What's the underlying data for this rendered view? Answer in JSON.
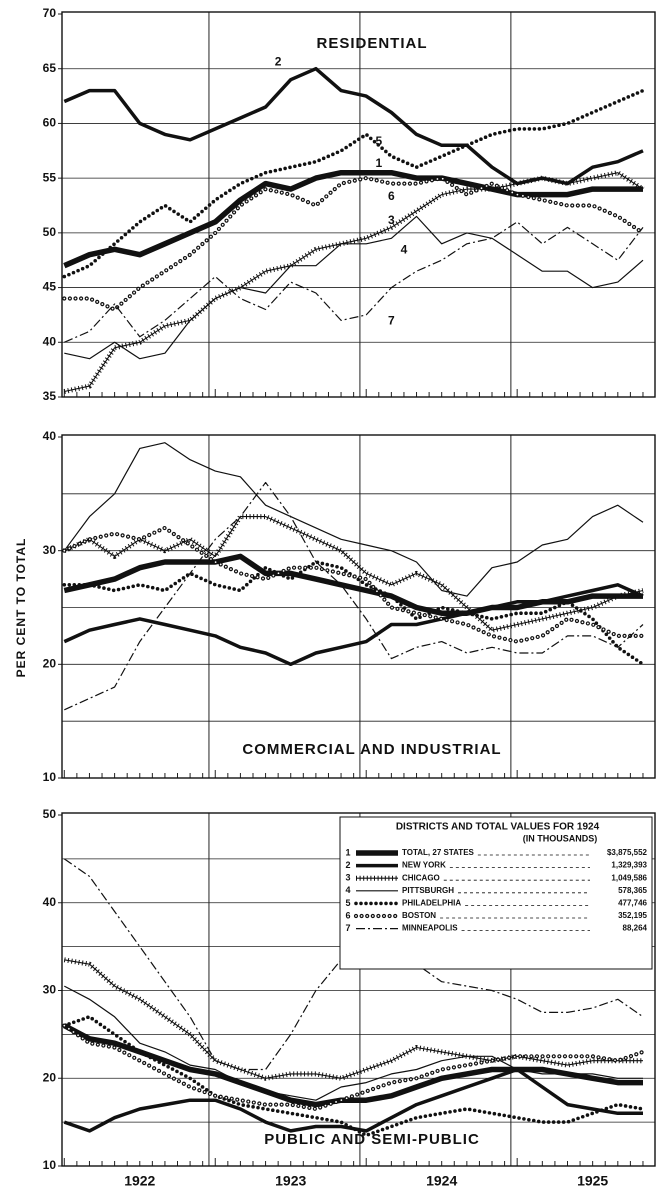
{
  "chart_data": [
    {
      "type": "line",
      "title": "RESIDENTIAL",
      "ylim": [
        35,
        70
      ],
      "yticks": [
        35,
        40,
        45,
        50,
        55,
        60,
        65,
        70
      ],
      "ygrid": [
        40,
        45,
        50,
        55,
        60,
        65
      ],
      "series": [
        {
          "values": [
            47,
            48,
            48.5,
            48,
            49,
            50,
            51,
            53,
            54.5,
            54,
            55,
            55.5,
            55.5,
            55.5,
            55,
            55,
            54.5,
            54,
            53.5,
            53.5,
            53.5,
            54,
            54,
            54
          ]
        },
        {
          "values": [
            62,
            63,
            63,
            60,
            59,
            58.5,
            59.5,
            60.5,
            61.5,
            64,
            65,
            63,
            62.5,
            61,
            59,
            58,
            58,
            56,
            54.5,
            55,
            54.5,
            56,
            56.5,
            57.5
          ]
        },
        {
          "values": [
            35.5,
            36,
            39.5,
            40,
            41.5,
            42,
            44,
            45,
            46.5,
            47,
            48.5,
            49,
            49.5,
            50.5,
            52,
            53.5,
            54,
            54,
            54.5,
            55,
            54.5,
            55,
            55.5,
            54
          ]
        },
        {
          "values": [
            39,
            38.5,
            40,
            38.5,
            39,
            42,
            44,
            45,
            44.5,
            47,
            47,
            49,
            49,
            49.5,
            51.5,
            49,
            50,
            49.5,
            48,
            46.5,
            46.5,
            45,
            45.5,
            47.5
          ]
        },
        {
          "values": [
            46,
            47,
            49,
            51,
            52.5,
            51,
            53,
            54.5,
            55.5,
            56,
            56.5,
            57.5,
            59,
            57,
            56,
            57,
            58,
            59,
            59.5,
            59.5,
            60,
            61,
            62,
            63
          ]
        },
        {
          "values": [
            44,
            44,
            43,
            45,
            46.5,
            48,
            50,
            52.5,
            54,
            53.5,
            52.5,
            54.5,
            55,
            54.5,
            54.5,
            55,
            53.5,
            54.5,
            53.5,
            53,
            52.5,
            52.5,
            51.5,
            50
          ]
        },
        {
          "values": [
            40,
            41,
            43.5,
            40.5,
            42,
            44,
            46,
            44,
            43,
            45.5,
            44.5,
            42,
            42.5,
            45,
            46.5,
            47.5,
            49,
            49.5,
            51,
            49,
            50.5,
            49,
            47.5,
            50.5
          ]
        }
      ],
      "annotations": [
        {
          "text": "1",
          "x": 12.5,
          "y": 56.3
        },
        {
          "text": "2",
          "x": 8.5,
          "y": 65.6
        },
        {
          "text": "3",
          "x": 13,
          "y": 51.1
        },
        {
          "text": "4",
          "x": 13.5,
          "y": 48.4
        },
        {
          "text": "5",
          "x": 12.5,
          "y": 58.3
        },
        {
          "text": "6",
          "x": 13,
          "y": 53.3
        },
        {
          "text": "7",
          "x": 13,
          "y": 41.9
        }
      ]
    },
    {
      "type": "line",
      "title": "COMMERCIAL AND INDUSTRIAL",
      "ylabel": "PER CENT TO TOTAL",
      "ylim": [
        10,
        40
      ],
      "yticks": [
        10,
        20,
        30,
        40
      ],
      "ygrid": [
        15,
        20,
        25,
        30,
        35
      ],
      "series": [
        {
          "values": [
            26.5,
            27,
            27.5,
            28.5,
            29,
            29,
            29,
            29.5,
            28,
            28,
            27.5,
            27,
            26.5,
            26,
            25,
            24.5,
            24.5,
            25,
            25,
            25.5,
            25.5,
            26,
            26,
            26
          ]
        },
        {
          "values": [
            22,
            23,
            23.5,
            24,
            23.5,
            23,
            22.5,
            21.5,
            21,
            20,
            21,
            21.5,
            22,
            23.5,
            23.5,
            24,
            24.5,
            25,
            25.5,
            25.5,
            26,
            26.5,
            27,
            26
          ]
        },
        {
          "values": [
            30,
            31,
            29.5,
            31,
            30,
            31,
            29.5,
            33,
            33,
            32,
            31,
            30,
            28,
            27,
            28,
            27,
            25,
            23,
            23.5,
            24,
            24.5,
            25,
            26,
            26.5
          ]
        },
        {
          "values": [
            30,
            33,
            35,
            39,
            39.5,
            38,
            37,
            36.5,
            34,
            33,
            32,
            31,
            30.5,
            30,
            29,
            26.5,
            26,
            28.5,
            29,
            30.5,
            31,
            33,
            34,
            32.5
          ]
        },
        {
          "values": [
            27,
            27,
            26.5,
            27,
            26.5,
            28,
            27,
            26.5,
            28.5,
            27.5,
            29,
            28.5,
            27,
            26,
            24,
            25,
            24.5,
            24,
            24.5,
            24.5,
            25.5,
            24,
            21.5,
            20
          ]
        },
        {
          "values": [
            30,
            31,
            31.5,
            31,
            32,
            30.5,
            29,
            28,
            27.5,
            28.5,
            28.5,
            28,
            27.5,
            25,
            24.5,
            24,
            23.5,
            22.5,
            22,
            22.5,
            24,
            23.5,
            22.5,
            22.5
          ]
        },
        {
          "values": [
            16,
            17,
            18,
            22,
            25,
            28,
            31,
            33,
            36,
            33,
            29,
            27,
            24,
            20.5,
            21.5,
            22,
            21,
            21.5,
            21,
            21,
            22.5,
            22.5,
            21.5,
            23.5
          ]
        }
      ]
    },
    {
      "type": "line",
      "title": "PUBLIC AND SEMI-PUBLIC",
      "ylim": [
        10,
        50
      ],
      "yticks": [
        10,
        20,
        30,
        40,
        50
      ],
      "ygrid": [
        15,
        20,
        25,
        30,
        35,
        40,
        45
      ],
      "categories": [
        null,
        null,
        null,
        "1922",
        null,
        null,
        null,
        null,
        null,
        "1923",
        null,
        null,
        null,
        null,
        null,
        "1924",
        null,
        null,
        null,
        null,
        null,
        "1925",
        null,
        null
      ],
      "series": [
        {
          "values": [
            26,
            24.5,
            24,
            23,
            22,
            21,
            20.5,
            19.5,
            18.5,
            17.5,
            17,
            17.5,
            17.5,
            18,
            19,
            20,
            20.5,
            21,
            21,
            21,
            20.5,
            20,
            19.5,
            19.5
          ]
        },
        {
          "values": [
            15,
            14,
            15.5,
            16.5,
            17,
            17.5,
            17.5,
            16.5,
            15,
            14,
            14.5,
            14.5,
            14,
            15.5,
            17,
            18,
            19,
            20,
            21,
            19,
            17,
            16.5,
            16,
            16
          ]
        },
        {
          "values": [
            33.5,
            33,
            30.5,
            29,
            27,
            25,
            22,
            21,
            20,
            20.5,
            20.5,
            20,
            21,
            22,
            23.5,
            23,
            22.5,
            22,
            22.5,
            22,
            21.5,
            22,
            22,
            22
          ]
        },
        {
          "values": [
            30.5,
            29,
            27,
            24,
            23,
            21.5,
            21,
            19.5,
            18.5,
            18,
            17.5,
            19,
            19.5,
            20.5,
            21,
            22,
            22.5,
            22.5,
            21,
            20.5,
            20.5,
            20.5,
            20,
            20
          ]
        },
        {
          "values": [
            26,
            27,
            25,
            23,
            21.5,
            20,
            18,
            17,
            16.5,
            16,
            15.5,
            15,
            13.5,
            14.5,
            15.5,
            16,
            16.5,
            16,
            15.5,
            15,
            15,
            16,
            17,
            16.5
          ]
        },
        {
          "values": [
            26,
            24,
            23.5,
            22,
            20.5,
            19,
            18,
            17.5,
            17,
            17,
            16.5,
            17.5,
            18.5,
            19.5,
            20,
            21,
            21.5,
            22,
            22.5,
            22.5,
            22.5,
            22.5,
            22,
            23
          ]
        },
        {
          "values": [
            45,
            43,
            39,
            35,
            31,
            27,
            22,
            21,
            21,
            25,
            30,
            33.5,
            33.5,
            34.5,
            33,
            31,
            30.5,
            30,
            29,
            27.5,
            27.5,
            28,
            29,
            27
          ]
        }
      ]
    }
  ],
  "legend": {
    "title": "DISTRICTS AND TOTAL VALUES FOR 1924",
    "subtitle": "(IN THOUSANDS)",
    "entries": [
      {
        "number": "1",
        "name": "TOTAL, 27 STATES",
        "value": "$3,875,552",
        "style": "thick"
      },
      {
        "number": "2",
        "name": "NEW YORK",
        "value": "1,329,393",
        "style": "heavy"
      },
      {
        "number": "3",
        "name": "CHICAGO",
        "value": "1,049,586",
        "style": "cross"
      },
      {
        "number": "4",
        "name": "PITTSBURGH",
        "value": "578,365",
        "style": "thin"
      },
      {
        "number": "5",
        "name": "PHILADELPHIA",
        "value": "477,746",
        "style": "dots"
      },
      {
        "number": "6",
        "name": "BOSTON",
        "value": "352,195",
        "style": "circles"
      },
      {
        "number": "7",
        "name": "MINNEAPOLIS",
        "value": "88,264",
        "style": "dash-dot"
      }
    ]
  }
}
